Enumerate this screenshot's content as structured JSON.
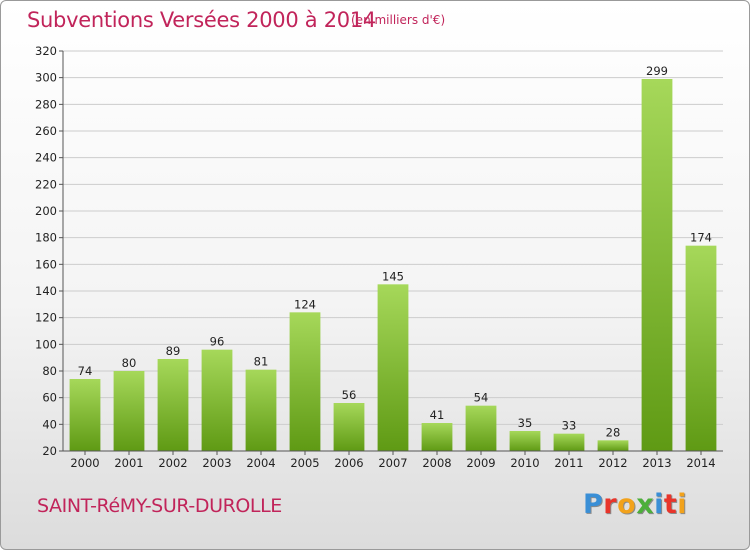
{
  "header": {
    "title": "Subventions Versées 2000 à 2014",
    "subtitle": "(en milliers d'€)"
  },
  "footer": {
    "commune": "SAINT-RéMY-SUR-DUROLLE",
    "logo": "Proxiti",
    "logo_colors": [
      "#3a8fd6",
      "#e8352b",
      "#f2a21b",
      "#4caf3a",
      "#3a8fd6",
      "#e8352b",
      "#f2a21b"
    ]
  },
  "colors": {
    "bar_light": "#a6d85a",
    "bar_dark": "#5f9a14",
    "grid": "#cccccc",
    "axis": "#555555",
    "brand": "#c1245a"
  },
  "chart_data": {
    "type": "bar",
    "title": "Subventions Versées 2000 à 2014",
    "subtitle": "(en milliers d'€)",
    "categories": [
      "2000",
      "2001",
      "2002",
      "2003",
      "2004",
      "2005",
      "2006",
      "2007",
      "2008",
      "2009",
      "2010",
      "2011",
      "2012",
      "2013",
      "2014"
    ],
    "values": [
      74,
      80,
      89,
      96,
      81,
      124,
      56,
      145,
      41,
      54,
      35,
      33,
      28,
      299,
      174
    ],
    "ylim": [
      20,
      320
    ],
    "yticks": [
      20,
      40,
      60,
      80,
      100,
      120,
      140,
      160,
      180,
      200,
      220,
      240,
      260,
      280,
      300,
      320
    ],
    "grid": true,
    "show_data_labels": true
  }
}
